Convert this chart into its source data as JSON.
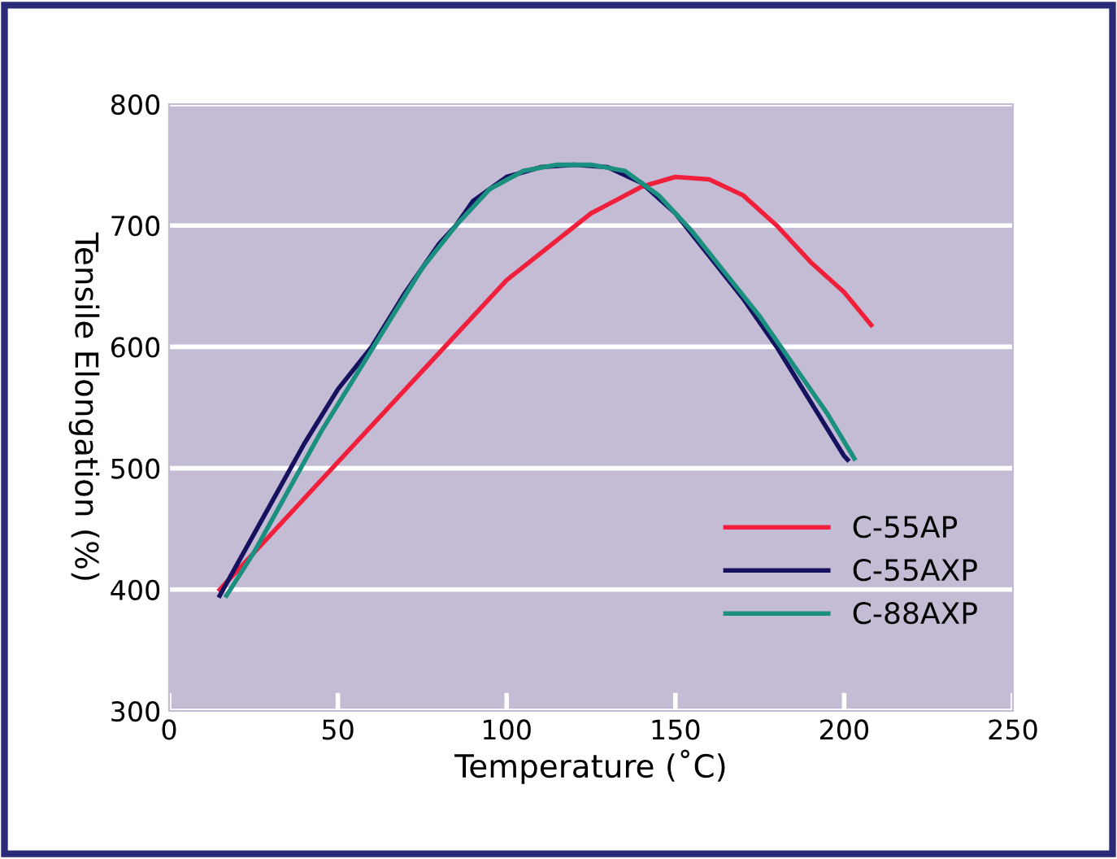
{
  "chart_data": {
    "type": "line",
    "xlabel": "Temperature (˚C)",
    "ylabel": "Tensile Elongation (%)",
    "xlim": [
      0,
      250
    ],
    "xticks": [
      0,
      50,
      100,
      150,
      200,
      250
    ],
    "ylim": [
      300,
      800
    ],
    "yticks": [
      300,
      400,
      500,
      600,
      700,
      800
    ],
    "grid": "y",
    "legend": "bottom right",
    "line_style": "solid",
    "series": [
      {
        "name": "C-55AP",
        "color": "#f0203c",
        "x": [
          15,
          25,
          50,
          75,
          100,
          125,
          140,
          150,
          160,
          170,
          180,
          190,
          200,
          208
        ],
        "values": [
          400,
          430,
          505,
          580,
          655,
          710,
          732,
          740,
          738,
          725,
          700,
          670,
          645,
          618
        ]
      },
      {
        "name": "C-55AXP",
        "color": "#17125f",
        "x": [
          15,
          20,
          30,
          40,
          50,
          60,
          70,
          80,
          85,
          90,
          100,
          110,
          120,
          130,
          140,
          150,
          160,
          170,
          180,
          190,
          200,
          201
        ],
        "values": [
          395,
          420,
          470,
          520,
          565,
          600,
          645,
          685,
          700,
          720,
          740,
          748,
          750,
          748,
          735,
          710,
          675,
          640,
          600,
          555,
          510,
          507
        ]
      },
      {
        "name": "C-88AXP",
        "color": "#1b9080",
        "x": [
          17,
          25,
          35,
          45,
          55,
          65,
          75,
          85,
          95,
          105,
          115,
          125,
          135,
          145,
          155,
          165,
          175,
          185,
          195,
          203
        ],
        "values": [
          395,
          430,
          480,
          530,
          575,
          620,
          665,
          700,
          730,
          745,
          750,
          750,
          745,
          725,
          695,
          660,
          625,
          585,
          545,
          508
        ]
      }
    ]
  }
}
